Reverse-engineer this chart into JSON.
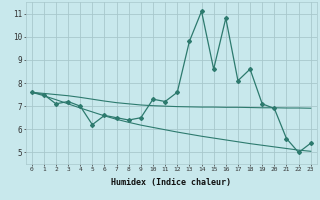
{
  "xlabel": "Humidex (Indice chaleur)",
  "x": [
    0,
    1,
    2,
    3,
    4,
    5,
    6,
    7,
    8,
    9,
    10,
    11,
    12,
    13,
    14,
    15,
    16,
    17,
    18,
    19,
    20,
    21,
    22,
    23
  ],
  "line_main": [
    7.6,
    7.5,
    7.1,
    7.2,
    7.0,
    6.2,
    6.6,
    6.5,
    6.4,
    6.5,
    7.3,
    7.2,
    7.6,
    9.8,
    11.1,
    8.6,
    10.8,
    8.1,
    8.6,
    7.1,
    6.9,
    5.6,
    5.0,
    5.4
  ],
  "trend1": [
    7.6,
    7.55,
    7.5,
    7.45,
    7.38,
    7.3,
    7.22,
    7.15,
    7.1,
    7.05,
    7.02,
    7.0,
    6.98,
    6.97,
    6.96,
    6.96,
    6.95,
    6.95,
    6.94,
    6.93,
    6.93,
    6.92,
    6.92,
    6.91
  ],
  "trend2": [
    7.6,
    7.45,
    7.28,
    7.1,
    6.92,
    6.75,
    6.58,
    6.43,
    6.3,
    6.18,
    6.08,
    5.98,
    5.88,
    5.79,
    5.7,
    5.62,
    5.54,
    5.46,
    5.38,
    5.31,
    5.24,
    5.17,
    5.1,
    5.05
  ],
  "line_color": "#2d7a6e",
  "bg_color": "#c8e8ec",
  "grid_color": "#a8c8cc",
  "ylim": [
    4.5,
    11.5
  ],
  "yticks": [
    5,
    6,
    7,
    8,
    9,
    10,
    11
  ],
  "xlim": [
    -0.5,
    23.5
  ]
}
